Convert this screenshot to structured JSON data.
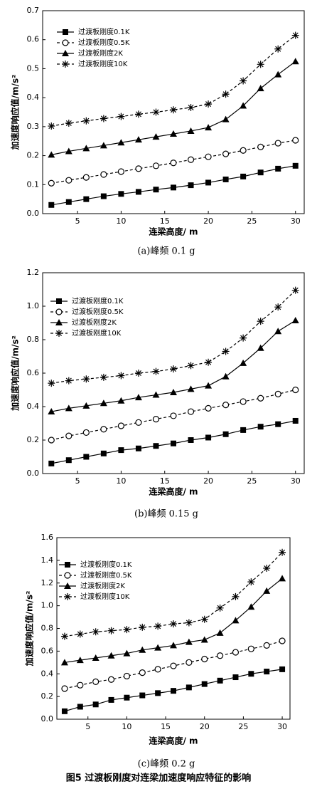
{
  "chart_data": [
    {
      "type": "line",
      "subtitle": "(a)峰频 0.1 g",
      "x_label": "连梁高度/ m",
      "y_label": "加速度响应值/m/s²",
      "x": [
        2,
        4,
        6,
        8,
        10,
        12,
        14,
        16,
        18,
        20,
        22,
        24,
        26,
        28,
        30
      ],
      "xlim": [
        1,
        31
      ],
      "xticks": [
        5,
        10,
        15,
        20,
        25,
        30
      ],
      "ylim": [
        0,
        0.7
      ],
      "yticks": [
        {
          "value": 0,
          "label": "0.0"
        },
        0.1,
        0.2,
        0.3,
        0.4,
        0.5,
        0.6,
        0.7
      ],
      "series": [
        {
          "name": "过渡板刚度0.1K",
          "color": "#000000",
          "marker": "square",
          "dashed": false,
          "values": [
            0.03,
            0.04,
            0.05,
            0.06,
            0.068,
            0.075,
            0.083,
            0.09,
            0.098,
            0.107,
            0.118,
            0.128,
            0.142,
            0.155,
            0.165
          ]
        },
        {
          "name": "过渡板刚度0.5K",
          "color": "#000000",
          "marker": "circle",
          "dashed": true,
          "values": [
            0.105,
            0.115,
            0.125,
            0.135,
            0.145,
            0.155,
            0.165,
            0.175,
            0.186,
            0.196,
            0.206,
            0.218,
            0.23,
            0.243,
            0.253
          ]
        },
        {
          "name": "过渡板刚度2K",
          "color": "#000000",
          "marker": "triangle",
          "dashed": false,
          "values": [
            0.203,
            0.215,
            0.225,
            0.235,
            0.245,
            0.255,
            0.265,
            0.275,
            0.285,
            0.297,
            0.325,
            0.372,
            0.432,
            0.48,
            0.525
          ]
        },
        {
          "name": "过渡板刚度10K",
          "color": "#000000",
          "marker": "asterisk",
          "dashed": true,
          "values": [
            0.302,
            0.312,
            0.32,
            0.328,
            0.335,
            0.343,
            0.35,
            0.358,
            0.366,
            0.378,
            0.412,
            0.458,
            0.515,
            0.568,
            0.615
          ]
        }
      ]
    },
    {
      "type": "line",
      "subtitle": "(b)峰频 0.15 g",
      "x_label": "连梁高度/ m",
      "y_label": "加速度响应值/m/s²",
      "x": [
        2,
        4,
        6,
        8,
        10,
        12,
        14,
        16,
        18,
        20,
        22,
        24,
        26,
        28,
        30
      ],
      "xlim": [
        1,
        31
      ],
      "xticks": [
        5,
        10,
        15,
        20,
        25,
        30
      ],
      "ylim": [
        0,
        1.2
      ],
      "yticks": [
        {
          "value": 0,
          "label": "0.0"
        },
        0.2,
        0.4,
        0.6,
        0.8,
        {
          "value": 1,
          "label": "1.0"
        },
        1.2
      ],
      "series": [
        {
          "name": "过渡板刚度0.1K",
          "color": "#000000",
          "marker": "square",
          "dashed": false,
          "values": [
            0.06,
            0.08,
            0.1,
            0.12,
            0.14,
            0.15,
            0.165,
            0.18,
            0.2,
            0.215,
            0.235,
            0.26,
            0.28,
            0.295,
            0.315
          ]
        },
        {
          "name": "过渡板刚度0.5K",
          "color": "#000000",
          "marker": "circle",
          "dashed": true,
          "values": [
            0.2,
            0.225,
            0.245,
            0.265,
            0.285,
            0.305,
            0.325,
            0.345,
            0.37,
            0.39,
            0.41,
            0.43,
            0.45,
            0.475,
            0.5
          ]
        },
        {
          "name": "过渡板刚度2K",
          "color": "#000000",
          "marker": "triangle",
          "dashed": false,
          "values": [
            0.37,
            0.39,
            0.405,
            0.42,
            0.435,
            0.455,
            0.47,
            0.485,
            0.505,
            0.525,
            0.58,
            0.66,
            0.75,
            0.85,
            0.915
          ]
        },
        {
          "name": "过渡板刚度10K",
          "color": "#000000",
          "marker": "asterisk",
          "dashed": true,
          "values": [
            0.54,
            0.555,
            0.565,
            0.575,
            0.585,
            0.6,
            0.61,
            0.625,
            0.645,
            0.665,
            0.73,
            0.81,
            0.91,
            0.995,
            1.095
          ]
        }
      ]
    },
    {
      "type": "line",
      "subtitle": "(c)峰频 0.2 g",
      "x_label": "连梁高度/ m",
      "y_label": "加速度响应值/m/s²",
      "x": [
        2,
        4,
        6,
        8,
        10,
        12,
        14,
        16,
        18,
        20,
        22,
        24,
        26,
        28,
        30
      ],
      "xlim": [
        1,
        31
      ],
      "xticks": [
        5,
        10,
        15,
        20,
        25,
        30
      ],
      "ylim": [
        0,
        1.6
      ],
      "yticks": [
        {
          "value": 0,
          "label": "0.0"
        },
        0.2,
        0.4,
        0.6,
        0.8,
        {
          "value": 1,
          "label": "1.0"
        },
        1.2,
        1.4,
        1.6
      ],
      "series": [
        {
          "name": "过渡板刚度0.1K",
          "color": "#000000",
          "marker": "square",
          "dashed": false,
          "values": [
            0.07,
            0.11,
            0.13,
            0.17,
            0.19,
            0.21,
            0.23,
            0.25,
            0.28,
            0.31,
            0.34,
            0.37,
            0.4,
            0.42,
            0.44
          ]
        },
        {
          "name": "过渡板刚度0.5K",
          "color": "#000000",
          "marker": "circle",
          "dashed": true,
          "values": [
            0.27,
            0.3,
            0.33,
            0.35,
            0.38,
            0.41,
            0.44,
            0.47,
            0.5,
            0.53,
            0.56,
            0.59,
            0.62,
            0.65,
            0.69
          ]
        },
        {
          "name": "过渡板刚度2K",
          "color": "#000000",
          "marker": "triangle",
          "dashed": false,
          "values": [
            0.5,
            0.52,
            0.54,
            0.56,
            0.58,
            0.61,
            0.63,
            0.65,
            0.68,
            0.7,
            0.76,
            0.87,
            0.99,
            1.13,
            1.24
          ]
        },
        {
          "name": "过渡板刚度10K",
          "color": "#000000",
          "marker": "asterisk",
          "dashed": true,
          "values": [
            0.73,
            0.75,
            0.77,
            0.78,
            0.79,
            0.81,
            0.82,
            0.84,
            0.85,
            0.88,
            0.98,
            1.08,
            1.21,
            1.33,
            1.47
          ]
        }
      ]
    }
  ],
  "figure_caption": "图5 过渡板刚度对连梁加速度响应特征的影响"
}
